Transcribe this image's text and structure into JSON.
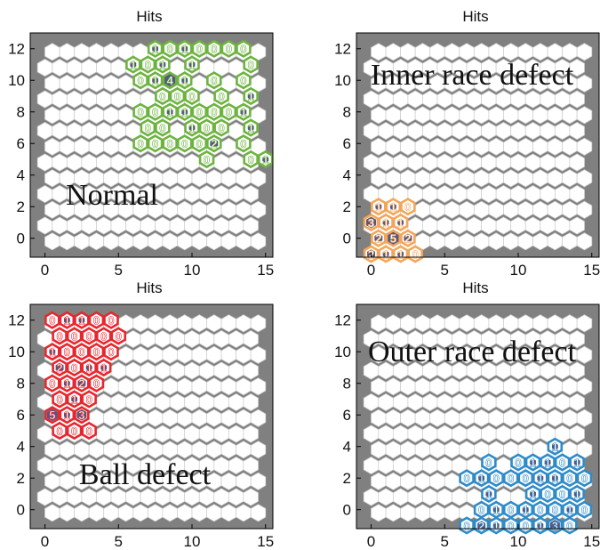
{
  "chart_data": [
    {
      "type": "heatmap",
      "title": "Hits",
      "annotation": "Normal",
      "xlim": [
        -1,
        15.5
      ],
      "ylim": [
        -1.2,
        13
      ],
      "xticks": [
        0,
        5,
        10,
        15
      ],
      "yticks": [
        0,
        2,
        4,
        6,
        8,
        10,
        12
      ],
      "grid_cols": 15,
      "grid_rows": 13,
      "color": "#6db33f",
      "background": "#808080",
      "cells": [
        [
          7.5,
          12,
          1
        ],
        [
          8.5,
          12,
          0
        ],
        [
          9.5,
          12,
          1
        ],
        [
          10.5,
          12,
          0
        ],
        [
          11.5,
          12,
          0
        ],
        [
          12.5,
          12,
          0
        ],
        [
          13.5,
          12,
          0
        ],
        [
          6,
          11,
          1
        ],
        [
          7,
          11,
          0
        ],
        [
          8,
          11,
          1
        ],
        [
          10,
          11,
          1
        ],
        [
          14,
          11,
          0
        ],
        [
          6.5,
          10,
          0
        ],
        [
          7.5,
          10,
          1
        ],
        [
          8.5,
          10,
          4
        ],
        [
          9.5,
          10,
          1
        ],
        [
          11.5,
          10,
          0
        ],
        [
          13.5,
          10,
          0
        ],
        [
          8,
          9,
          0
        ],
        [
          9,
          9,
          0
        ],
        [
          10,
          9,
          0
        ],
        [
          12,
          9,
          0
        ],
        [
          14,
          9,
          1
        ],
        [
          6.5,
          8,
          0
        ],
        [
          7.5,
          8,
          0
        ],
        [
          8.5,
          8,
          1
        ],
        [
          9.5,
          8,
          1
        ],
        [
          10.5,
          8,
          0
        ],
        [
          11.5,
          8,
          0
        ],
        [
          12.5,
          8,
          0
        ],
        [
          13.5,
          8,
          1
        ],
        [
          7,
          7,
          0
        ],
        [
          8,
          7,
          0
        ],
        [
          10,
          7,
          1
        ],
        [
          11,
          7,
          0
        ],
        [
          12,
          7,
          0
        ],
        [
          14,
          7,
          1
        ],
        [
          6.5,
          6,
          0
        ],
        [
          7.5,
          6,
          0
        ],
        [
          8.5,
          6,
          0
        ],
        [
          9.5,
          6,
          0
        ],
        [
          10.5,
          6,
          0
        ],
        [
          11.5,
          6,
          2
        ],
        [
          13.5,
          6,
          0
        ],
        [
          11,
          5,
          0
        ],
        [
          14,
          5,
          0
        ],
        [
          15,
          5,
          1
        ]
      ]
    },
    {
      "type": "heatmap",
      "title": "Hits",
      "annotation": "Inner race defect",
      "xlim": [
        -1,
        15.5
      ],
      "ylim": [
        -1.2,
        13
      ],
      "xticks": [
        0,
        5,
        10,
        15
      ],
      "yticks": [
        0,
        2,
        4,
        6,
        8,
        10,
        12
      ],
      "grid_cols": 15,
      "grid_rows": 13,
      "color": "#f2a65a",
      "background": "#808080",
      "cells": [
        [
          0.5,
          2,
          1
        ],
        [
          1.5,
          2,
          1
        ],
        [
          2.5,
          2,
          0
        ],
        [
          0,
          1,
          3
        ],
        [
          1,
          1,
          1
        ],
        [
          2,
          1,
          1
        ],
        [
          0.5,
          0,
          2
        ],
        [
          1.5,
          0,
          5
        ],
        [
          2.5,
          0,
          2
        ],
        [
          0,
          -1,
          2
        ],
        [
          1,
          -1,
          1
        ],
        [
          2,
          -1,
          1
        ],
        [
          3,
          -1,
          0
        ]
      ]
    },
    {
      "type": "heatmap",
      "title": "Hits",
      "annotation": "Ball defect",
      "xlim": [
        -1,
        15.5
      ],
      "ylim": [
        -1.2,
        13
      ],
      "xticks": [
        0,
        5,
        10,
        15
      ],
      "yticks": [
        0,
        2,
        4,
        6,
        8,
        10,
        12
      ],
      "grid_cols": 15,
      "grid_rows": 13,
      "color": "#e8262d",
      "background": "#808080",
      "cells": [
        [
          0.5,
          12,
          0
        ],
        [
          1.5,
          12,
          1
        ],
        [
          2.5,
          12,
          1
        ],
        [
          3.5,
          12,
          0
        ],
        [
          4.5,
          12,
          0
        ],
        [
          1,
          11,
          0
        ],
        [
          2,
          11,
          0
        ],
        [
          3,
          11,
          0
        ],
        [
          4,
          11,
          0
        ],
        [
          5,
          11,
          0
        ],
        [
          0.5,
          10,
          1
        ],
        [
          1.5,
          10,
          0
        ],
        [
          2.5,
          10,
          0
        ],
        [
          3.5,
          10,
          0
        ],
        [
          4.5,
          10,
          0
        ],
        [
          1,
          9,
          2
        ],
        [
          2,
          9,
          0
        ],
        [
          3,
          9,
          1
        ],
        [
          4,
          9,
          1
        ],
        [
          0.5,
          8,
          0
        ],
        [
          1.5,
          8,
          1
        ],
        [
          2.5,
          8,
          2
        ],
        [
          3.5,
          8,
          0
        ],
        [
          1,
          7,
          0
        ],
        [
          2,
          7,
          1
        ],
        [
          3,
          7,
          0
        ],
        [
          0.5,
          6,
          5
        ],
        [
          1.5,
          6,
          1
        ],
        [
          2.5,
          6,
          3
        ],
        [
          1,
          5,
          0
        ],
        [
          2,
          5,
          0
        ],
        [
          3,
          5,
          0
        ]
      ]
    },
    {
      "type": "heatmap",
      "title": "Hits",
      "annotation": "Outer race defect",
      "xlim": [
        -1,
        15.5
      ],
      "ylim": [
        -1.2,
        13
      ],
      "xticks": [
        0,
        5,
        10,
        15
      ],
      "yticks": [
        0,
        2,
        4,
        6,
        8,
        10,
        12
      ],
      "grid_cols": 15,
      "grid_rows": 13,
      "color": "#2e8bc8",
      "background": "#808080",
      "cells": [
        [
          12.5,
          4,
          1
        ],
        [
          8,
          3,
          0
        ],
        [
          10,
          3,
          0
        ],
        [
          11,
          3,
          1
        ],
        [
          12,
          3,
          1
        ],
        [
          13,
          3,
          0
        ],
        [
          14,
          3,
          1
        ],
        [
          6.5,
          2,
          0
        ],
        [
          7.5,
          2,
          1
        ],
        [
          8.5,
          2,
          0
        ],
        [
          9.5,
          2,
          0
        ],
        [
          10.5,
          2,
          0
        ],
        [
          11.5,
          2,
          1
        ],
        [
          12.5,
          2,
          1
        ],
        [
          13.5,
          2,
          0
        ],
        [
          14.5,
          2,
          0
        ],
        [
          8,
          1,
          1
        ],
        [
          11,
          1,
          1
        ],
        [
          12,
          1,
          0
        ],
        [
          13,
          1,
          0
        ],
        [
          14,
          1,
          1
        ],
        [
          7.5,
          0,
          0
        ],
        [
          8.5,
          0,
          1
        ],
        [
          9.5,
          0,
          0
        ],
        [
          10.5,
          0,
          1
        ],
        [
          11.5,
          0,
          0
        ],
        [
          12.5,
          0,
          0
        ],
        [
          13.5,
          0,
          1
        ],
        [
          14.5,
          0,
          0
        ],
        [
          6.5,
          -1,
          0
        ],
        [
          7.5,
          -1,
          2
        ],
        [
          8.5,
          -1,
          1
        ],
        [
          9.5,
          -1,
          0
        ],
        [
          10.5,
          -1,
          0
        ],
        [
          11.5,
          -1,
          1
        ],
        [
          12.5,
          -1,
          3
        ],
        [
          13.5,
          -1,
          0
        ]
      ]
    }
  ]
}
